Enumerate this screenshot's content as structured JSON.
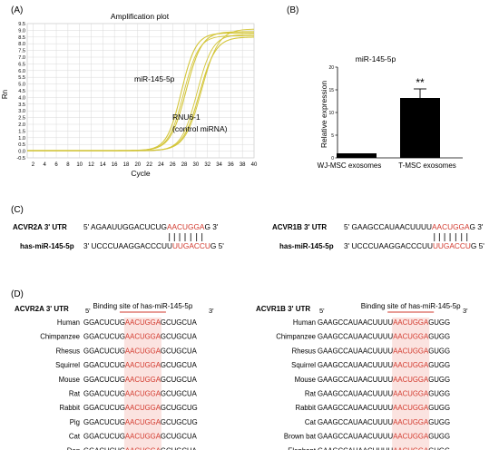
{
  "panel_a": {
    "label": "(A)",
    "title": "Amplification plot",
    "ylabel": "Rn",
    "xlabel": "Cycle",
    "curve_label_1": "miR-145-5p",
    "curve_label_2a": "RNU6-1",
    "curve_label_2b": "(control miRNA)",
    "yticks": [
      "-0.5",
      "0.0",
      "0.5",
      "1.0",
      "1.5",
      "2.0",
      "2.5",
      "3.0",
      "3.5",
      "4.0",
      "4.5",
      "5.0",
      "5.5",
      "6.0",
      "6.5",
      "7.0",
      "7.5",
      "8.0",
      "8.5",
      "9.0",
      "9.5"
    ],
    "xticks": [
      "2",
      "4",
      "6",
      "8",
      "10",
      "12",
      "14",
      "16",
      "18",
      "20",
      "22",
      "24",
      "26",
      "28",
      "30",
      "32",
      "34",
      "36",
      "38",
      "40"
    ],
    "curve_color": "#d4c63a",
    "grid_color": "#d9d9d9"
  },
  "chart_data": {
    "type": "bar",
    "title": "miR-145-5p",
    "ylabel": "Relative expression",
    "categories": [
      "WJ-MSC exosomes",
      "T-MSC exosomes"
    ],
    "values": [
      1.0,
      13.2
    ],
    "errors": [
      0,
      2.0
    ],
    "yticks": [
      "0",
      "5",
      "10",
      "15",
      "20"
    ],
    "ylim": [
      0,
      20
    ],
    "annotation": "**",
    "bar_color": "#000000"
  },
  "panel_b": {
    "label": "(B)"
  },
  "panel_c": {
    "label": "(C)",
    "left": {
      "gene": "ACVR2A  3' UTR",
      "target": {
        "prefix": "5' AGAAUUGGACUCUG",
        "seed": "AACUGGA",
        "suffix": "G 3'"
      },
      "mirna_name": "has-miR-145-5p",
      "mirna": {
        "prefix": "3' UCCCUAAGGACCCUU",
        "seed": "UUGACCU",
        "suffix": "G 5'"
      }
    },
    "right": {
      "gene": "ACVR1B 3' UTR",
      "target": {
        "prefix": "5' GAAGCCAUAACUUUU",
        "seed": "AACUGGA",
        "suffix": "G 3'"
      },
      "mirna_name": "has-miR-145-5p",
      "mirna": {
        "prefix": "3' UCCCUAAGGACCCUU",
        "seed": "UUGACCU",
        "suffix": "G 5'"
      }
    },
    "seed_color": "#d2382c"
  },
  "panel_d": {
    "label": "(D)",
    "left": {
      "gene": "ACVR2A  3' UTR",
      "binding": "Binding site of has-miR-145-5p",
      "five": "5'",
      "three": "3'",
      "rows": [
        {
          "species": "Human",
          "pre": "GGACUCUG",
          "seed": "AACUGGA",
          "post": "GCUGCUA"
        },
        {
          "species": "Chimpanzee",
          "pre": "GGACUCUG",
          "seed": "AACUGGA",
          "post": "GCUGCUA"
        },
        {
          "species": "Rhesus",
          "pre": "GGACUCUG",
          "seed": "AACUGGA",
          "post": "GCUGCUA"
        },
        {
          "species": "Squirrel",
          "pre": "GGACUCUG",
          "seed": "AACUGGA",
          "post": "GCUGCUA"
        },
        {
          "species": "Mouse",
          "pre": "GGACUCUG",
          "seed": "AACUGGA",
          "post": "GCUGCUA"
        },
        {
          "species": "Rat",
          "pre": "GGACUCUG",
          "seed": "AACUGGA",
          "post": "GCUGCUA"
        },
        {
          "species": "Rabbit",
          "pre": "GGACUCUG",
          "seed": "AACUGGA",
          "post": "GCUGCUG"
        },
        {
          "species": "Pig",
          "pre": "GGACUCUG",
          "seed": "AACUGGA",
          "post": "GCUGCUG"
        },
        {
          "species": "Cat",
          "pre": "GGACUCUG",
          "seed": "AACUGGA",
          "post": "GCUGCUA"
        },
        {
          "species": "Dog",
          "pre": "GGACUCUG",
          "seed": "AACUGGA",
          "post": "GCUGCUA"
        }
      ]
    },
    "right": {
      "gene": "ACVR1B 3' UTR",
      "binding": "Binding site of has-miR-145-5p",
      "five": "5'",
      "three": "3'",
      "rows": [
        {
          "species": "Human",
          "pre": "GAAGCCAUAACUUUU",
          "seed": "AACUGGA",
          "post": "GUGG"
        },
        {
          "species": "Chimpanzee",
          "pre": "GAAGCCAUAACUUUU",
          "seed": "AACUGGA",
          "post": "GUGG"
        },
        {
          "species": "Rhesus",
          "pre": "GAAGCCAUAACUUUU",
          "seed": "AACUGGA",
          "post": "GUGG"
        },
        {
          "species": "Squirrel",
          "pre": "GAAGCCAUAACUUUU",
          "seed": "AACUGGA",
          "post": "GUGG"
        },
        {
          "species": "Mouse",
          "pre": "GAAGCCAUAACUUUU",
          "seed": "AACUGGA",
          "post": "GUGG"
        },
        {
          "species": "Rat",
          "pre": "GAAGCCAUAACUUUU",
          "seed": "AACUGGA",
          "post": "GUGG"
        },
        {
          "species": "Rabbit",
          "pre": "GAAGCCAUAACUUUU",
          "seed": "AACUGGA",
          "post": "GUGG"
        },
        {
          "species": "Cat",
          "pre": "GAAGCCAUAACUUUU",
          "seed": "AACUGGA",
          "post": "GUGG"
        },
        {
          "species": "Brown bat",
          "pre": "GAAGCCAUAACUUUU",
          "seed": "AACUGGA",
          "post": "GUGG"
        },
        {
          "species": "Elephant",
          "pre": "GAAGCCAUAACUUUU",
          "seed": "AACUGGA",
          "post": "GUGG"
        }
      ]
    },
    "seed_color": "#d2382c",
    "highlight_color": "#fbe3e0"
  }
}
